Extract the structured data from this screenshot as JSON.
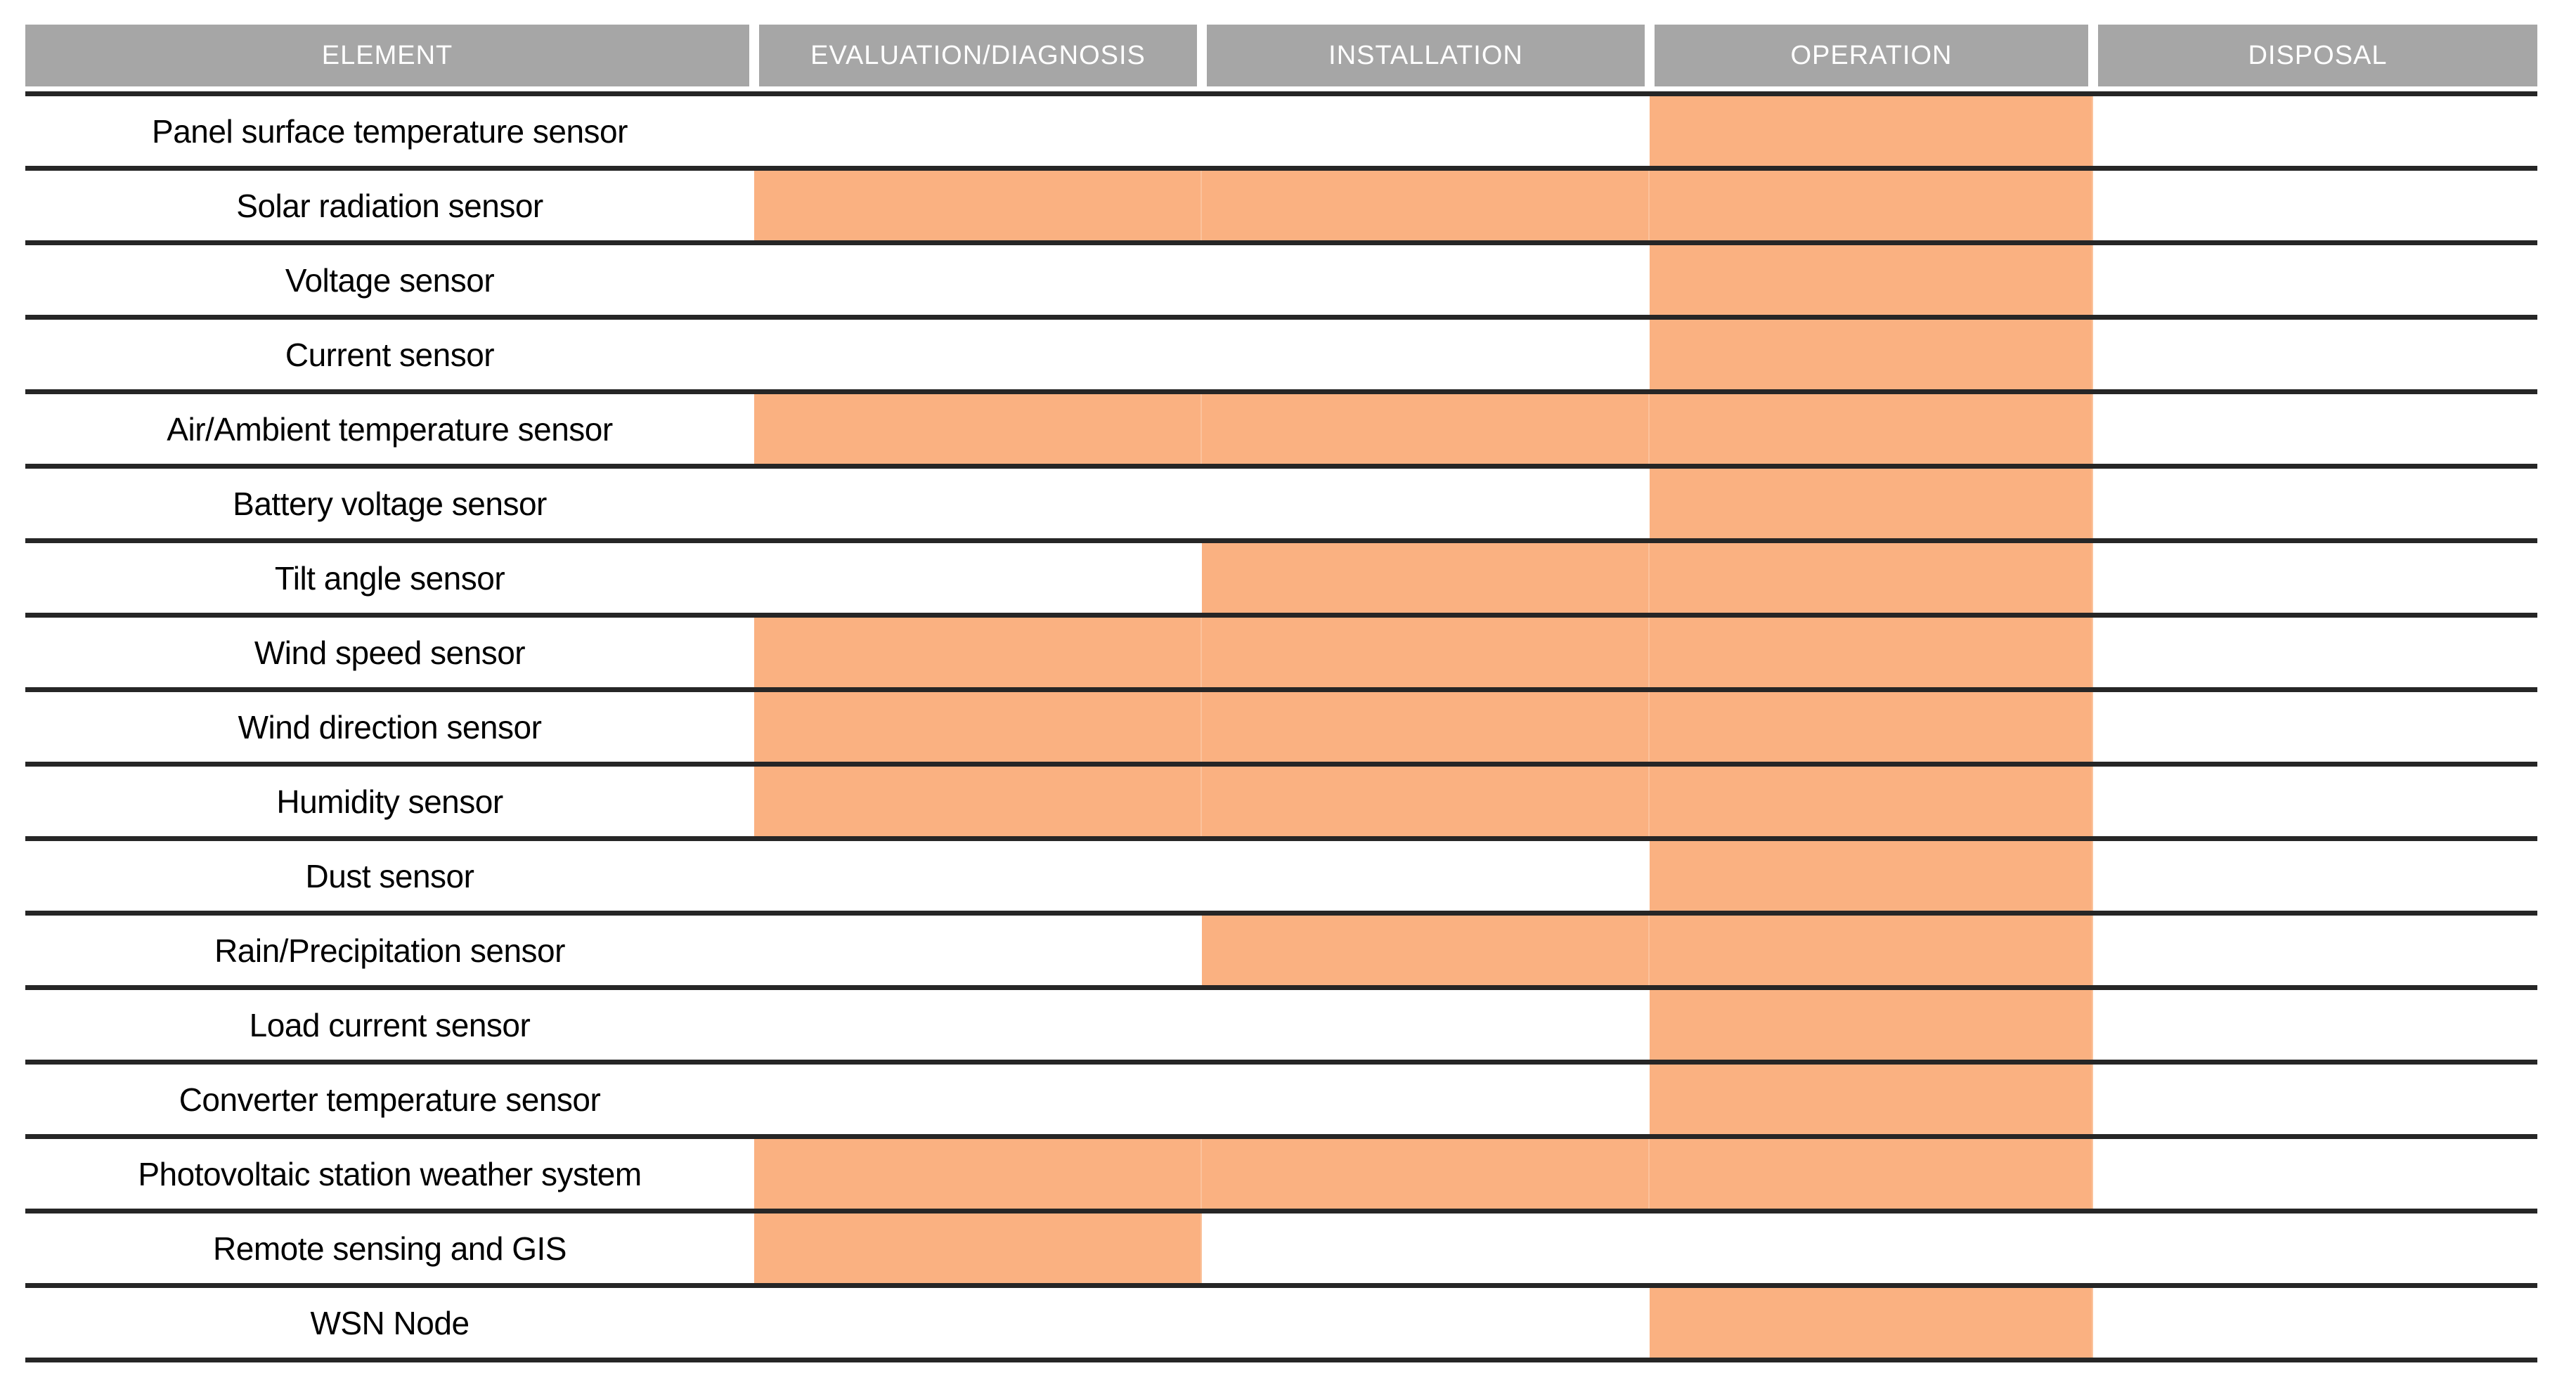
{
  "chart_data": {
    "type": "table",
    "subtype": "gantt-lifecycle-matrix",
    "columns": [
      "ELEMENT",
      "EVALUATION/DIAGNOSIS",
      "INSTALLATION",
      "OPERATION",
      "DISPOSAL"
    ],
    "phases": [
      "evaluation",
      "installation",
      "operation",
      "disposal"
    ],
    "rows": [
      {
        "element": "Panel surface temperature sensor",
        "active_phases": [
          "operation"
        ]
      },
      {
        "element": "Solar radiation sensor",
        "active_phases": [
          "evaluation",
          "installation",
          "operation"
        ]
      },
      {
        "element": "Voltage sensor",
        "active_phases": [
          "operation"
        ]
      },
      {
        "element": "Current sensor",
        "active_phases": [
          "operation"
        ]
      },
      {
        "element": "Air/Ambient temperature sensor",
        "active_phases": [
          "evaluation",
          "installation",
          "operation"
        ]
      },
      {
        "element": "Battery voltage sensor",
        "active_phases": [
          "operation"
        ]
      },
      {
        "element": "Tilt angle sensor",
        "active_phases": [
          "installation",
          "operation"
        ]
      },
      {
        "element": "Wind speed sensor",
        "active_phases": [
          "evaluation",
          "installation",
          "operation"
        ]
      },
      {
        "element": "Wind direction sensor",
        "active_phases": [
          "evaluation",
          "installation",
          "operation"
        ]
      },
      {
        "element": "Humidity sensor",
        "active_phases": [
          "evaluation",
          "installation",
          "operation"
        ]
      },
      {
        "element": "Dust sensor",
        "active_phases": [
          "operation"
        ]
      },
      {
        "element": "Rain/Precipitation sensor",
        "active_phases": [
          "installation",
          "operation"
        ]
      },
      {
        "element": "Load current sensor",
        "active_phases": [
          "operation"
        ]
      },
      {
        "element": "Converter temperature sensor",
        "active_phases": [
          "operation"
        ]
      },
      {
        "element": "Photovoltaic station weather system",
        "active_phases": [
          "evaluation",
          "installation",
          "operation"
        ]
      },
      {
        "element": "Remote sensing and GIS",
        "active_phases": [
          "evaluation"
        ]
      },
      {
        "element": "WSN Node",
        "active_phases": [
          "operation"
        ]
      }
    ],
    "legend_position": "none",
    "grid": "horizontal-rules"
  },
  "colors": {
    "highlight": "#FAB181",
    "header_bg": "#A6A6A6",
    "header_text": "#FFFFFF",
    "line": "#262626",
    "label_text": "#000000"
  }
}
